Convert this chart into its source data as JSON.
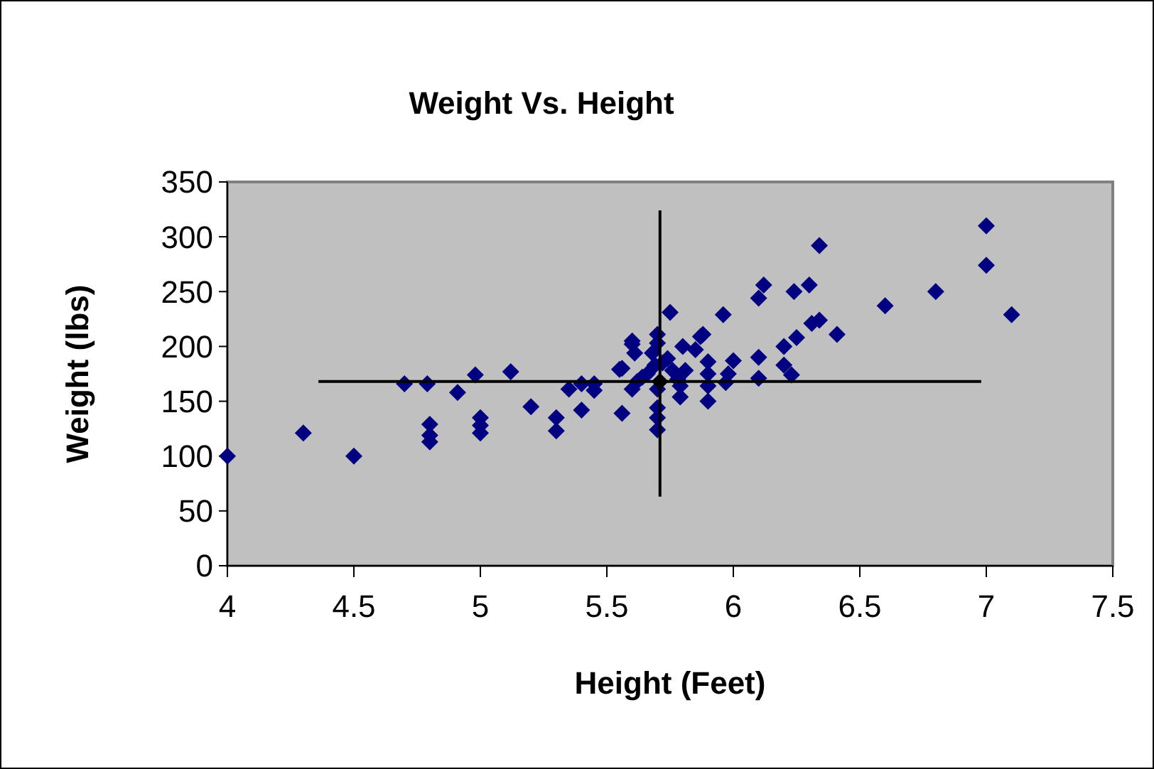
{
  "chart_data": {
    "type": "scatter",
    "title": "Weight Vs. Height",
    "xlabel": "Height (Feet)",
    "ylabel": "Weight (lbs)",
    "xlim": [
      4,
      7.5
    ],
    "xticks": [
      4,
      4.5,
      5,
      5.5,
      6,
      6.5,
      7,
      7.5
    ],
    "ylim": [
      0,
      350
    ],
    "yticks": [
      0,
      50,
      100,
      150,
      200,
      250,
      300,
      350
    ],
    "grid": false,
    "marker": "diamond",
    "series": [
      {
        "color": "#000080",
        "x": [
          4.0,
          4.3,
          4.5,
          4.7,
          4.79,
          4.8,
          4.8,
          4.8,
          4.91,
          4.98,
          5.0,
          5.0,
          5.0,
          5.12,
          5.2,
          5.3,
          5.3,
          5.35,
          5.4,
          5.4,
          5.45,
          5.45,
          5.56,
          5.56,
          5.6,
          5.61,
          5.6,
          5.64,
          5.68,
          5.7,
          5.7,
          5.69,
          5.7,
          5.7,
          5.7,
          5.7,
          5.75,
          5.74,
          5.76,
          5.79,
          5.79,
          5.8,
          5.81,
          5.85,
          5.87,
          5.88,
          5.9,
          5.9,
          5.9,
          5.9,
          5.96,
          5.97,
          6.0,
          5.98,
          6.1,
          6.12,
          6.1,
          6.1,
          6.2,
          6.2,
          6.23,
          6.24,
          6.25,
          6.3,
          6.31,
          6.34,
          6.34,
          6.41,
          6.6,
          6.8,
          7.0,
          7.0,
          7.1,
          5.6,
          5.55,
          5.66,
          5.72,
          5.78,
          5.62
        ],
        "values": [
          100,
          121,
          100,
          166,
          166,
          129,
          119,
          113,
          158,
          174,
          135,
          128,
          121,
          177,
          145,
          135,
          123,
          161,
          166,
          142,
          166,
          160,
          139,
          180,
          202,
          194,
          161,
          172,
          194,
          211,
          203,
          183,
          161,
          144,
          135,
          124,
          231,
          189,
          178,
          164,
          154,
          200,
          178,
          197,
          209,
          211,
          186,
          175,
          164,
          150,
          229,
          167,
          187,
          175,
          244,
          256,
          190,
          171,
          200,
          183,
          174,
          250,
          208,
          256,
          221,
          224,
          292,
          211,
          237,
          250,
          310,
          274,
          229,
          205,
          179,
          175,
          185,
          170,
          168
        ]
      },
      {
        "color": "#000000",
        "x": [
          5.71
        ],
        "values": [
          168
        ],
        "errors": [
          [
            63,
            324
          ]
        ],
        "xerrors": [
          [
            4.36,
            6.98
          ]
        ]
      }
    ]
  }
}
